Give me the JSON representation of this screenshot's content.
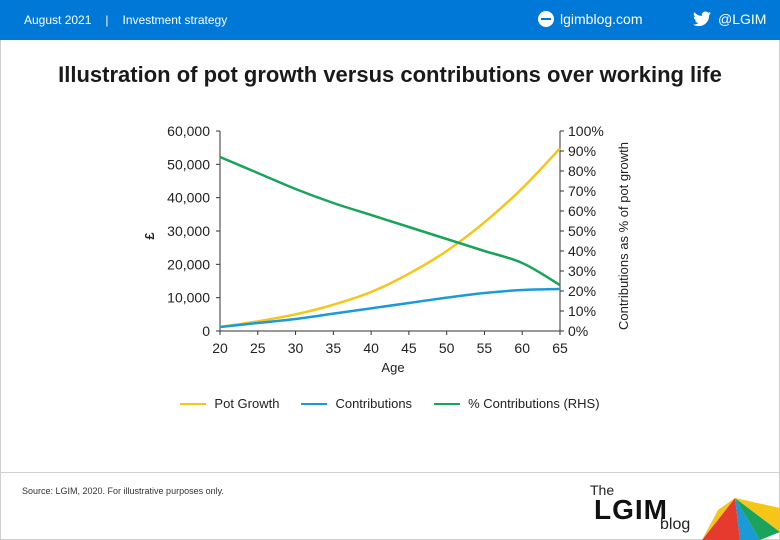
{
  "header": {
    "date": "August 2021",
    "separator": "|",
    "category": "Investment strategy",
    "site": "lgimblog.com",
    "twitter": "@LGIM",
    "bg_color": "#0078d7"
  },
  "chart_data": {
    "type": "line",
    "title": "Illustration of pot growth versus contributions over working life",
    "xlabel": "Age",
    "ylabel": "£",
    "y2label": "Contributions as % of pot growth",
    "xlim": [
      20,
      65
    ],
    "ylim": [
      0,
      60000
    ],
    "y2lim": [
      0,
      1.0
    ],
    "x_ticks": [
      "20",
      "25",
      "30",
      "35",
      "40",
      "45",
      "50",
      "55",
      "60",
      "65"
    ],
    "y_ticks": [
      "0",
      "10,000",
      "20,000",
      "30,000",
      "40,000",
      "50,000",
      "60,000"
    ],
    "y2_ticks": [
      "0%",
      "10%",
      "20%",
      "30%",
      "40%",
      "50%",
      "60%",
      "70%",
      "80%",
      "90%",
      "100%"
    ],
    "legend_position": "bottom",
    "x": [
      20,
      25,
      30,
      35,
      40,
      45,
      50,
      55,
      60,
      65
    ],
    "series": [
      {
        "name": "Pot Growth",
        "axis": "left",
        "color": "#f5c518",
        "values": [
          1200,
          2900,
          5000,
          7900,
          11700,
          17200,
          24000,
          32600,
          42800,
          54800
        ]
      },
      {
        "name": "Contributions",
        "axis": "left",
        "color": "#1a9bd7",
        "values": [
          1200,
          2400,
          3600,
          5200,
          6800,
          8400,
          10000,
          11400,
          12300,
          12600
        ]
      },
      {
        "name": "% Contributions (RHS)",
        "axis": "right",
        "color": "#1aa35a",
        "values": [
          0.87,
          0.79,
          0.71,
          0.64,
          0.58,
          0.52,
          0.46,
          0.4,
          0.34,
          0.23
        ]
      }
    ]
  },
  "footer": {
    "source": "Source: LGIM,  2020. For illustrative purposes only.",
    "logo_the": "The",
    "logo_main": "LGIM",
    "logo_blog": "blog"
  }
}
